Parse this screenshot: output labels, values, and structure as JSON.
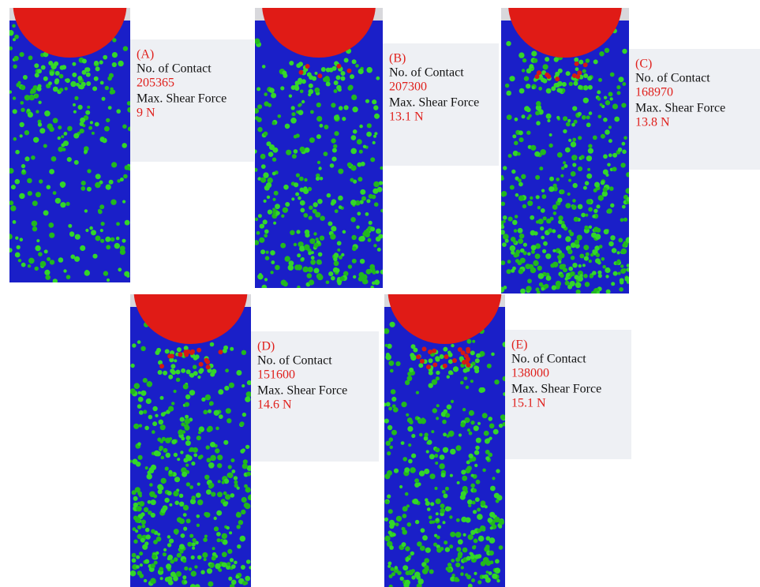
{
  "panels": [
    {
      "label": "(A)",
      "contact_label": "No. of Contact",
      "contact_value": "205365",
      "force_label": "Max. Shear Force",
      "force_value": "9 N"
    },
    {
      "label": "(B)",
      "contact_label": "No. of Contact",
      "contact_value": "207300",
      "force_label": "Max. Shear Force",
      "force_value": "13.1 N"
    },
    {
      "label": "(C)",
      "contact_label": "No. of Contact",
      "contact_value": "168970",
      "force_label": "Max. Shear Force",
      "force_value": "13.8 N"
    },
    {
      "label": "(D)",
      "contact_label": "No. of Contact",
      "contact_value": "151600",
      "force_label": "Max. Shear Force",
      "force_value": "14.6 N"
    },
    {
      "label": "(E)",
      "contact_label": "No. of Contact",
      "contact_value": "138000",
      "force_label": "Max. Shear Force",
      "force_value": "15.1 N"
    }
  ]
}
